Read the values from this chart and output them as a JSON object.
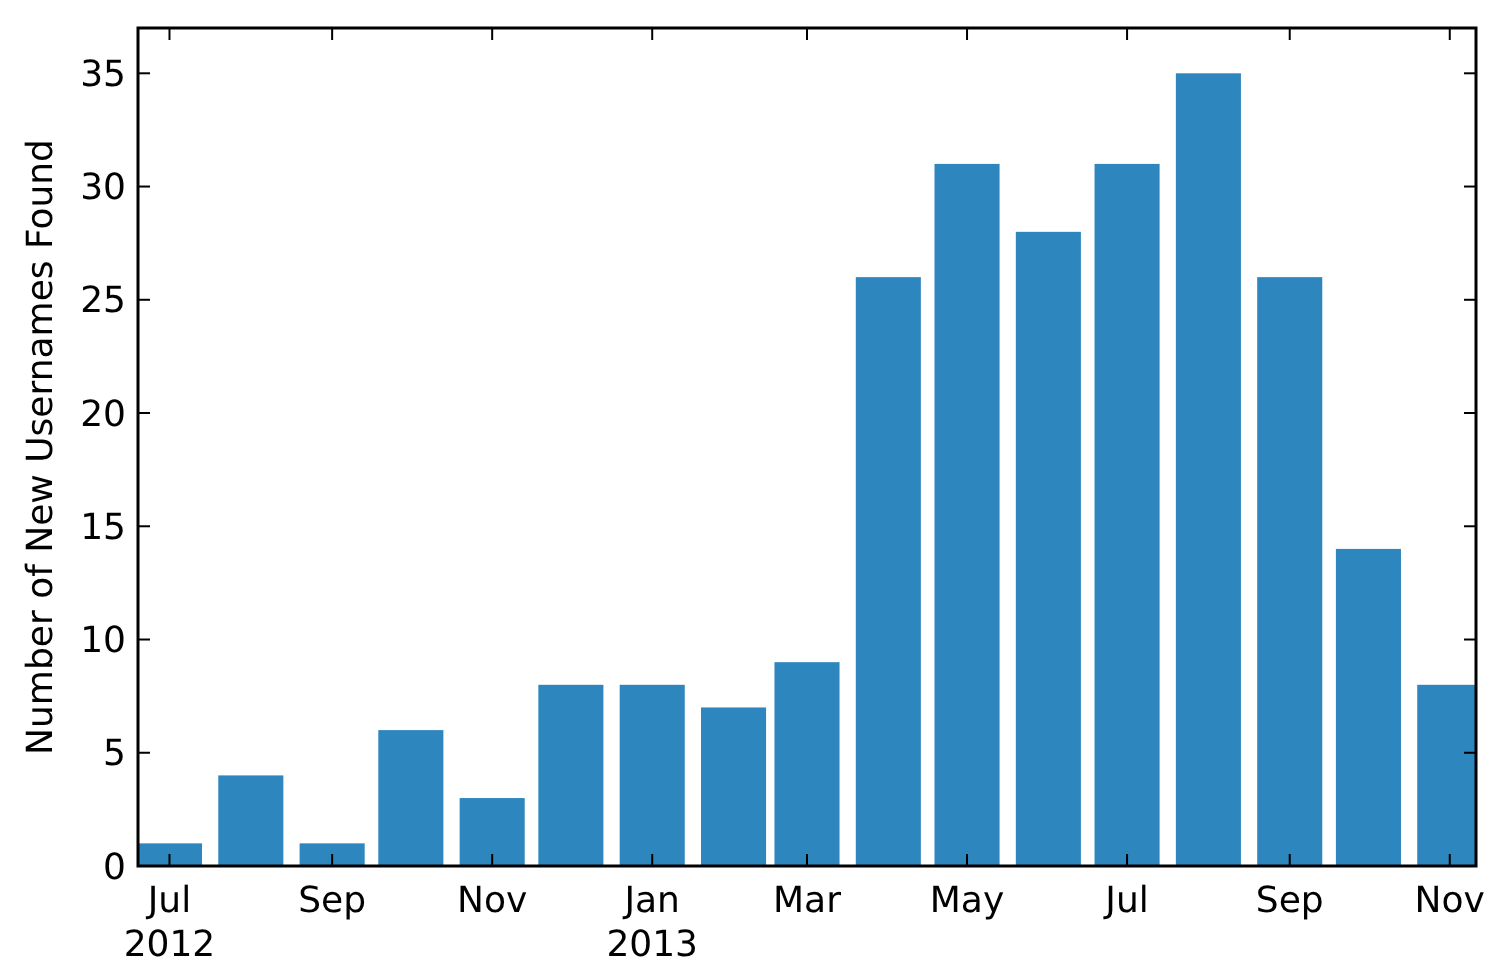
{
  "chart_data": {
    "type": "bar",
    "ylabel": "Number of New Usernames Found",
    "x": [
      "2012-07",
      "2012-08",
      "2012-09",
      "2012-10",
      "2012-11",
      "2012-12",
      "2013-01",
      "2013-02",
      "2013-03",
      "2013-04",
      "2013-05",
      "2013-06",
      "2013-07",
      "2013-08",
      "2013-09",
      "2013-10",
      "2013-11"
    ],
    "values": [
      1,
      4,
      1,
      6,
      3,
      8,
      8,
      7,
      9,
      26,
      31,
      28,
      31,
      35,
      26,
      14,
      8
    ],
    "color": "#2e86bf",
    "xlim": [
      "2012-06-19",
      "2013-11-11"
    ],
    "xticks": [
      {
        "value": "2012-07",
        "label": "Jul 2012"
      },
      {
        "value": "2012-09",
        "label": "Sep"
      },
      {
        "value": "2012-11",
        "label": "Nov"
      },
      {
        "value": "2013-01",
        "label": "Jan 2013"
      },
      {
        "value": "2013-03",
        "label": "Mar"
      },
      {
        "value": "2013-05",
        "label": "May"
      },
      {
        "value": "2013-07",
        "label": "Jul"
      },
      {
        "value": "2013-09",
        "label": "Sep"
      },
      {
        "value": "2013-11",
        "label": "Nov"
      }
    ],
    "ylim": [
      0,
      37
    ],
    "yticks": [
      0,
      5,
      10,
      15,
      20,
      25,
      30,
      35
    ],
    "grid": false
  }
}
